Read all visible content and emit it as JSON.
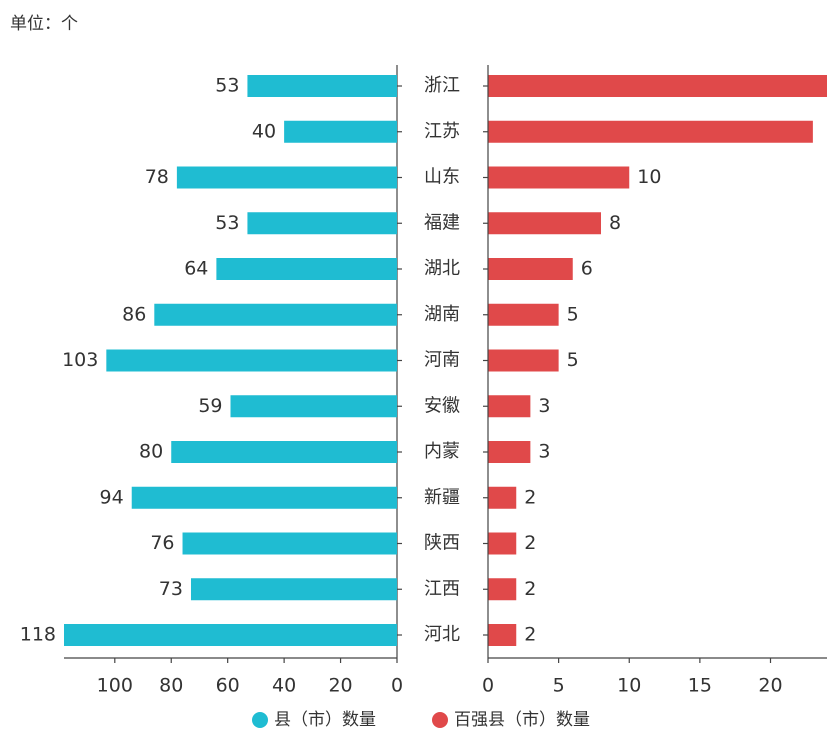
{
  "chart_data": [
    {
      "type": "bar",
      "orientation": "horizontal",
      "direction": "reversed",
      "unit_label": "单位：个",
      "categories": [
        "浙江",
        "江苏",
        "山东",
        "福建",
        "湖北",
        "湖南",
        "河南",
        "安徽",
        "内蒙",
        "新疆",
        "陕西",
        "江西",
        "河北"
      ],
      "series": [
        {
          "name": "县（市）数量",
          "color": "#1fbcd2",
          "values": [
            53,
            40,
            78,
            53,
            64,
            86,
            103,
            59,
            80,
            94,
            76,
            73,
            118
          ]
        }
      ],
      "xlim": [
        0,
        118
      ],
      "xticks": [
        0,
        20,
        40,
        60,
        80,
        100
      ],
      "grid": false
    },
    {
      "type": "bar",
      "orientation": "horizontal",
      "direction": "normal",
      "series": [
        {
          "name": "百强县（市）数量",
          "color": "#e0494a",
          "values": [
            25,
            23,
            10,
            8,
            6,
            5,
            5,
            3,
            3,
            2,
            2,
            2,
            2
          ]
        }
      ],
      "xlim": [
        0,
        24
      ],
      "xticks": [
        0,
        5,
        10,
        15,
        20
      ],
      "grid": false
    }
  ]
}
